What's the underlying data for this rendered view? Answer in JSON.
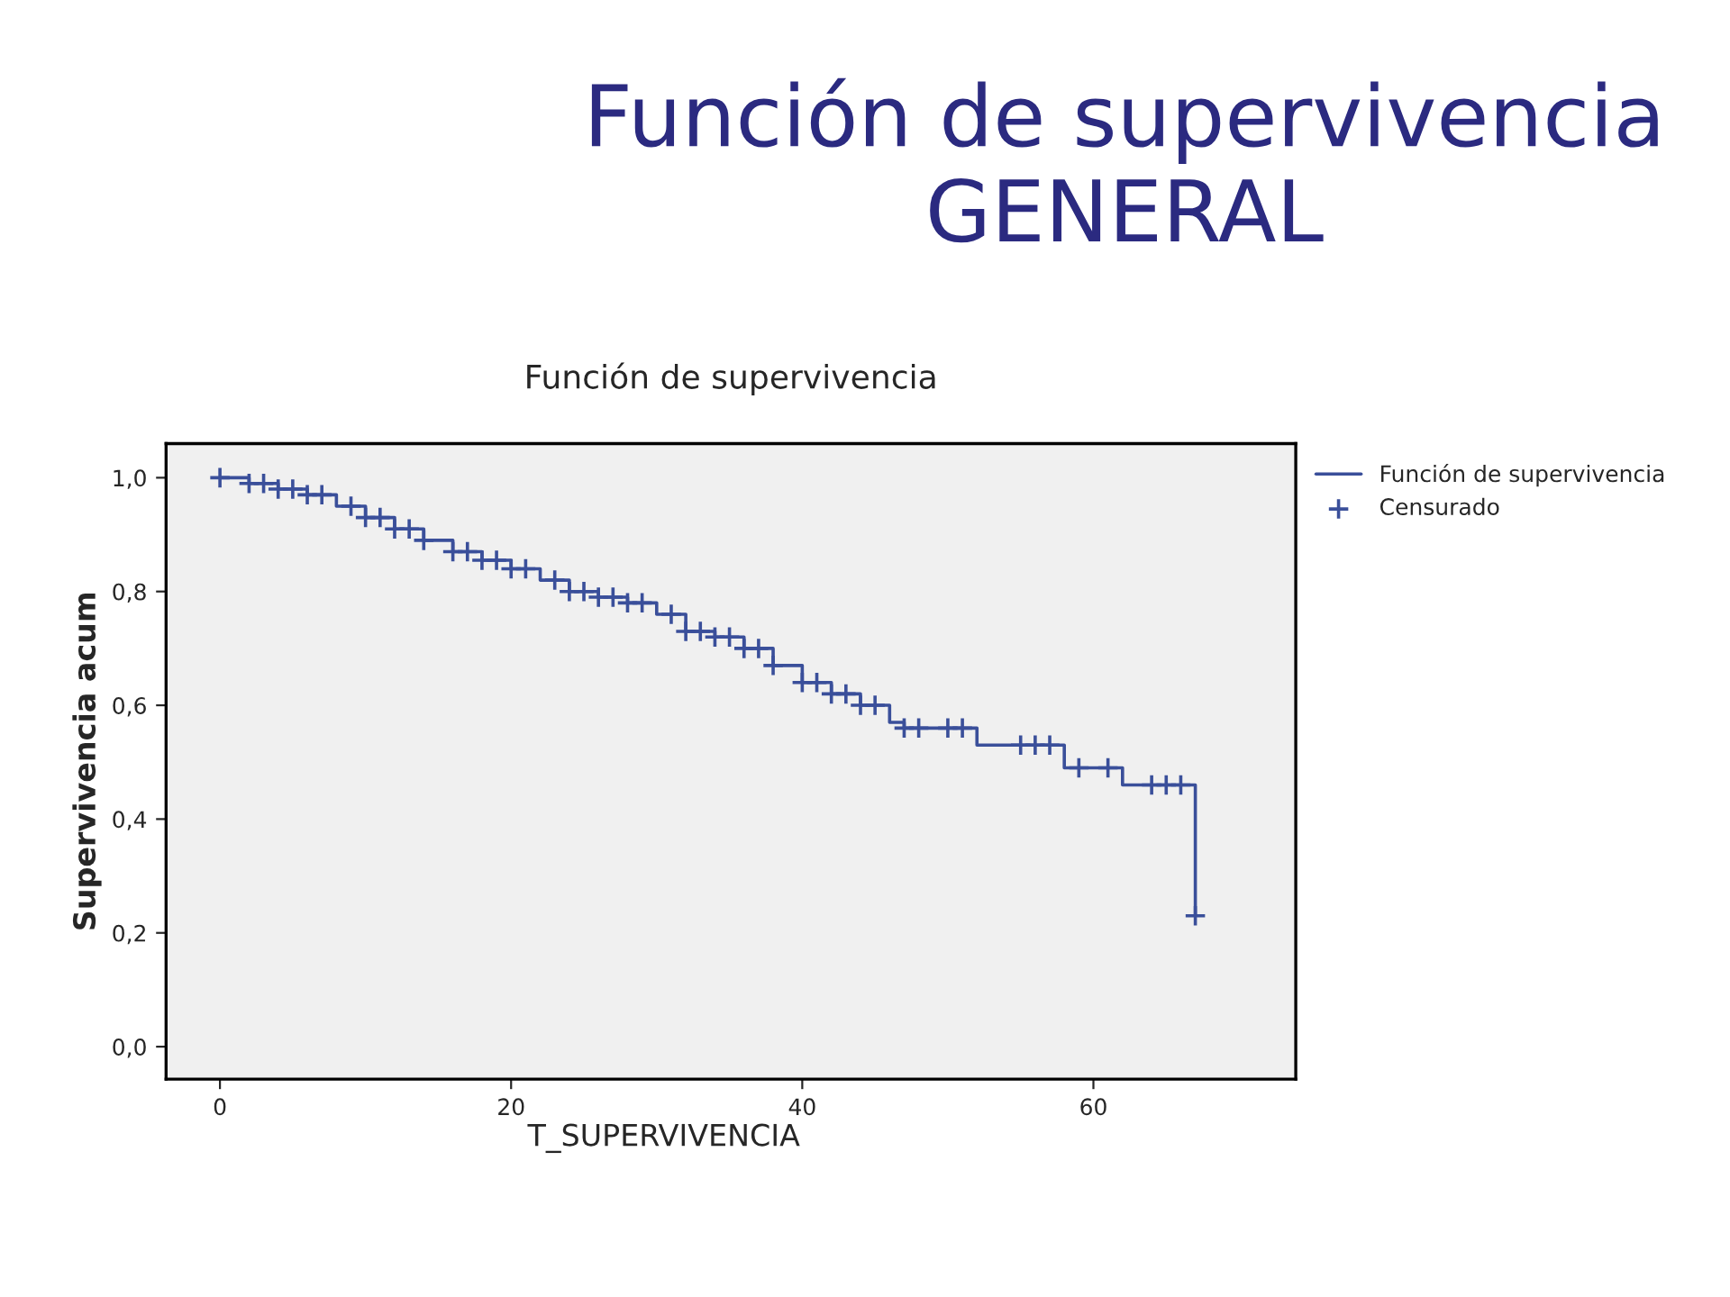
{
  "chart_data": {
    "type": "step",
    "title": "Función de supervivencia",
    "subtitle": "Función de supervivencia GENERAL",
    "xlabel": "T_SUPERVIVENCIA",
    "ylabel": "Supervivencia acum",
    "xlim": [
      -3.7,
      73.9
    ],
    "ylim": [
      -0.057,
      1.06
    ],
    "xticks": [
      0,
      20,
      40,
      60
    ],
    "yticks": [
      {
        "value": 0.0,
        "label": "0,0"
      },
      {
        "value": 0.2,
        "label": "0,2"
      },
      {
        "value": 0.4,
        "label": "0,4"
      },
      {
        "value": 0.6,
        "label": "0,6"
      },
      {
        "value": 0.8,
        "label": "0,8"
      },
      {
        "value": 1.0,
        "label": "1,0"
      }
    ],
    "grid": false,
    "legend": "top right",
    "series": [
      {
        "name": "Función de supervivencia",
        "color": "#3a4f9a",
        "line_style": "solid",
        "marker": "none",
        "x": [
          0,
          2,
          4,
          6,
          8,
          10,
          12,
          14,
          16,
          18,
          20,
          22,
          24,
          26,
          28,
          30,
          32,
          34,
          36,
          38,
          40,
          42,
          44,
          46,
          47,
          52,
          58,
          62,
          67
        ],
        "values": [
          1.0,
          0.99,
          0.98,
          0.97,
          0.95,
          0.93,
          0.91,
          0.89,
          0.87,
          0.855,
          0.84,
          0.82,
          0.8,
          0.79,
          0.78,
          0.76,
          0.73,
          0.72,
          0.7,
          0.67,
          0.64,
          0.62,
          0.6,
          0.57,
          0.56,
          0.53,
          0.49,
          0.46,
          0.23
        ]
      },
      {
        "name": "Censurado",
        "type": "scatter",
        "color": "#3a4f9a",
        "marker": "cross",
        "x": [
          0,
          2,
          3,
          4,
          5,
          6,
          7,
          9,
          10,
          11,
          12,
          13,
          14,
          16,
          17,
          18,
          19,
          20,
          21,
          23,
          24,
          25,
          26,
          27,
          28,
          29,
          31,
          32,
          33,
          34,
          35,
          36,
          37,
          38,
          40,
          41,
          42,
          43,
          44,
          45,
          47,
          48,
          50,
          51,
          55,
          56,
          57,
          59,
          61,
          64,
          65,
          66,
          67
        ],
        "values": [
          1.0,
          0.99,
          0.99,
          0.98,
          0.98,
          0.97,
          0.97,
          0.95,
          0.93,
          0.93,
          0.91,
          0.91,
          0.89,
          0.87,
          0.87,
          0.855,
          0.855,
          0.84,
          0.84,
          0.82,
          0.8,
          0.8,
          0.79,
          0.79,
          0.78,
          0.78,
          0.76,
          0.73,
          0.73,
          0.72,
          0.72,
          0.7,
          0.7,
          0.67,
          0.64,
          0.64,
          0.62,
          0.62,
          0.6,
          0.6,
          0.56,
          0.56,
          0.56,
          0.56,
          0.53,
          0.53,
          0.53,
          0.49,
          0.49,
          0.46,
          0.46,
          0.46,
          0.23
        ]
      }
    ]
  }
}
